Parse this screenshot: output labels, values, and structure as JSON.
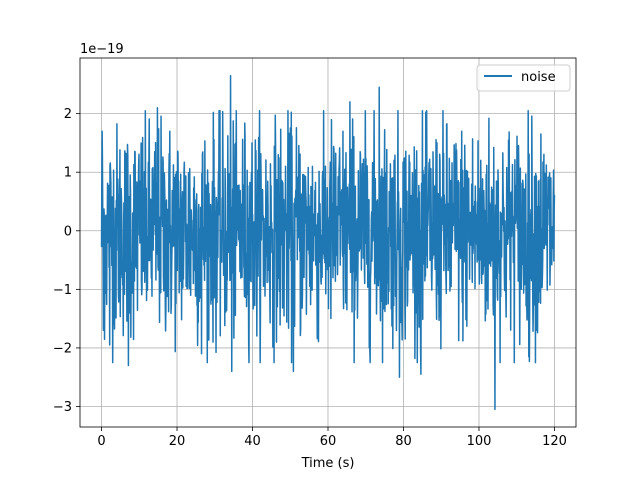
{
  "chart_data": {
    "type": "line",
    "title": "",
    "xlabel": "Time (s)",
    "ylabel": "",
    "y_scale_label": "1e−19",
    "xlim": [
      -5.7,
      125.7
    ],
    "ylim": [
      -3.35,
      2.95
    ],
    "xticks": [
      0,
      20,
      40,
      60,
      80,
      100,
      120
    ],
    "xtick_labels": [
      "0",
      "20",
      "40",
      "60",
      "80",
      "100",
      "120"
    ],
    "yticks": [
      -3,
      -2,
      -1,
      0,
      1,
      2
    ],
    "ytick_labels": [
      "−3",
      "−2",
      "−1",
      "0",
      "1",
      "2"
    ],
    "grid": true,
    "legend_position": "top-right",
    "series": [
      {
        "name": "noise",
        "color": "#1f77b4",
        "sample_count": 1500,
        "x_range": [
          0,
          120
        ],
        "std": 0.9,
        "extremes": [
          {
            "x": 0.2,
            "y": 1.7
          },
          {
            "x": 0.5,
            "y": -1.7
          },
          {
            "x": 2.2,
            "y": -1.95
          },
          {
            "x": 7.1,
            "y": -2.3
          },
          {
            "x": 14.8,
            "y": 2.1
          },
          {
            "x": 26.5,
            "y": -2.1
          },
          {
            "x": 34.2,
            "y": 2.65
          },
          {
            "x": 34.5,
            "y": -2.4
          },
          {
            "x": 50.8,
            "y": -2.4
          },
          {
            "x": 65.8,
            "y": 2.2
          },
          {
            "x": 73.6,
            "y": 2.45
          },
          {
            "x": 78.9,
            "y": -2.5
          },
          {
            "x": 84.6,
            "y": -2.45
          },
          {
            "x": 104.2,
            "y": -3.05
          },
          {
            "x": 113.2,
            "y": -2.15
          }
        ]
      }
    ]
  }
}
